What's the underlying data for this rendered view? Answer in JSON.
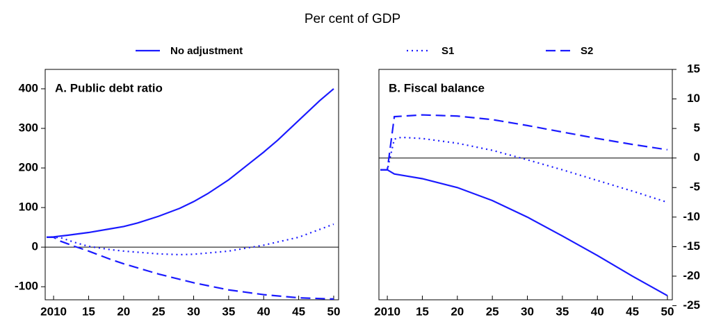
{
  "title": "Per cent of GDP",
  "chart_data": [
    {
      "type": "line",
      "title": "A. Public debt ratio",
      "axis_side": "left",
      "xlim": [
        2008.8,
        2050.7
      ],
      "xticks": [
        {
          "value": 2010,
          "label": "2010"
        },
        {
          "value": 2015,
          "label": "15"
        },
        {
          "value": 2020,
          "label": "20"
        },
        {
          "value": 2025,
          "label": "25"
        },
        {
          "value": 2030,
          "label": "30"
        },
        {
          "value": 2035,
          "label": "35"
        },
        {
          "value": 2040,
          "label": "40"
        },
        {
          "value": 2045,
          "label": "45"
        },
        {
          "value": 2050,
          "label": "50"
        }
      ],
      "ylim": [
        -133,
        449
      ],
      "yticks": [
        -100,
        0,
        100,
        200,
        300,
        400
      ],
      "series": [
        {
          "name": "No adjustment",
          "color": "#1a1aff",
          "dash": "solid",
          "x": [
            2009,
            2010,
            2012,
            2015,
            2018,
            2020,
            2022,
            2025,
            2028,
            2030,
            2032,
            2035,
            2038,
            2040,
            2042,
            2045,
            2048,
            2050
          ],
          "values": [
            25,
            26,
            30,
            37,
            46,
            52,
            61,
            78,
            98,
            115,
            135,
            170,
            212,
            240,
            270,
            320,
            370,
            400
          ]
        },
        {
          "name": "S1",
          "color": "#1a1aff",
          "dash": "dotted",
          "x": [
            2009,
            2010,
            2011,
            2013,
            2015,
            2018,
            2020,
            2025,
            2028,
            2030,
            2035,
            2040,
            2045,
            2050
          ],
          "values": [
            25,
            25,
            24,
            12,
            2,
            -6,
            -10,
            -17,
            -19,
            -18,
            -10,
            5,
            25,
            58
          ]
        },
        {
          "name": "S2",
          "color": "#1a1aff",
          "dash": "dashed",
          "x": [
            2009,
            2010,
            2011,
            2013,
            2015,
            2018,
            2020,
            2025,
            2030,
            2035,
            2040,
            2045,
            2050
          ],
          "values": [
            25,
            25,
            15,
            2,
            -10,
            -30,
            -42,
            -68,
            -90,
            -108,
            -120,
            -128,
            -131
          ]
        }
      ]
    },
    {
      "type": "line",
      "title": "B. Fiscal balance",
      "axis_side": "right",
      "xlim": [
        2008.8,
        2050.7
      ],
      "xticks": [
        {
          "value": 2010,
          "label": "2010"
        },
        {
          "value": 2015,
          "label": "15"
        },
        {
          "value": 2020,
          "label": "20"
        },
        {
          "value": 2025,
          "label": "25"
        },
        {
          "value": 2030,
          "label": "30"
        },
        {
          "value": 2035,
          "label": "35"
        },
        {
          "value": 2040,
          "label": "40"
        },
        {
          "value": 2045,
          "label": "45"
        },
        {
          "value": 2050,
          "label": "50"
        }
      ],
      "ylim": [
        -24,
        15
      ],
      "yticks": [
        -25,
        -20,
        -15,
        -10,
        -5,
        0,
        5,
        10,
        15
      ],
      "series": [
        {
          "color": "#1a1aff",
          "dash": "solid",
          "x": [
            2009,
            2010,
            2011,
            2015,
            2020,
            2025,
            2030,
            2035,
            2040,
            2045,
            2050
          ],
          "values": [
            -2,
            -2,
            -2.7,
            -3.5,
            -5,
            -7.2,
            -10,
            -13.2,
            -16.5,
            -20,
            -23.3
          ]
        },
        {
          "color": "#1a1aff",
          "dash": "dotted",
          "x": [
            2009,
            2010,
            2011,
            2012,
            2015,
            2020,
            2025,
            2030,
            2035,
            2040,
            2045,
            2050
          ],
          "values": [
            -2,
            -2,
            3.2,
            3.5,
            3.3,
            2.5,
            1.3,
            -0.3,
            -2,
            -3.8,
            -5.6,
            -7.5
          ]
        },
        {
          "color": "#1a1aff",
          "dash": "dashed",
          "x": [
            2009,
            2010,
            2011,
            2015,
            2020,
            2025,
            2030,
            2035,
            2040,
            2045,
            2050
          ],
          "values": [
            -2,
            -2,
            7,
            7.3,
            7.1,
            6.5,
            5.5,
            4.4,
            3.3,
            2.3,
            1.4
          ]
        }
      ]
    }
  ]
}
